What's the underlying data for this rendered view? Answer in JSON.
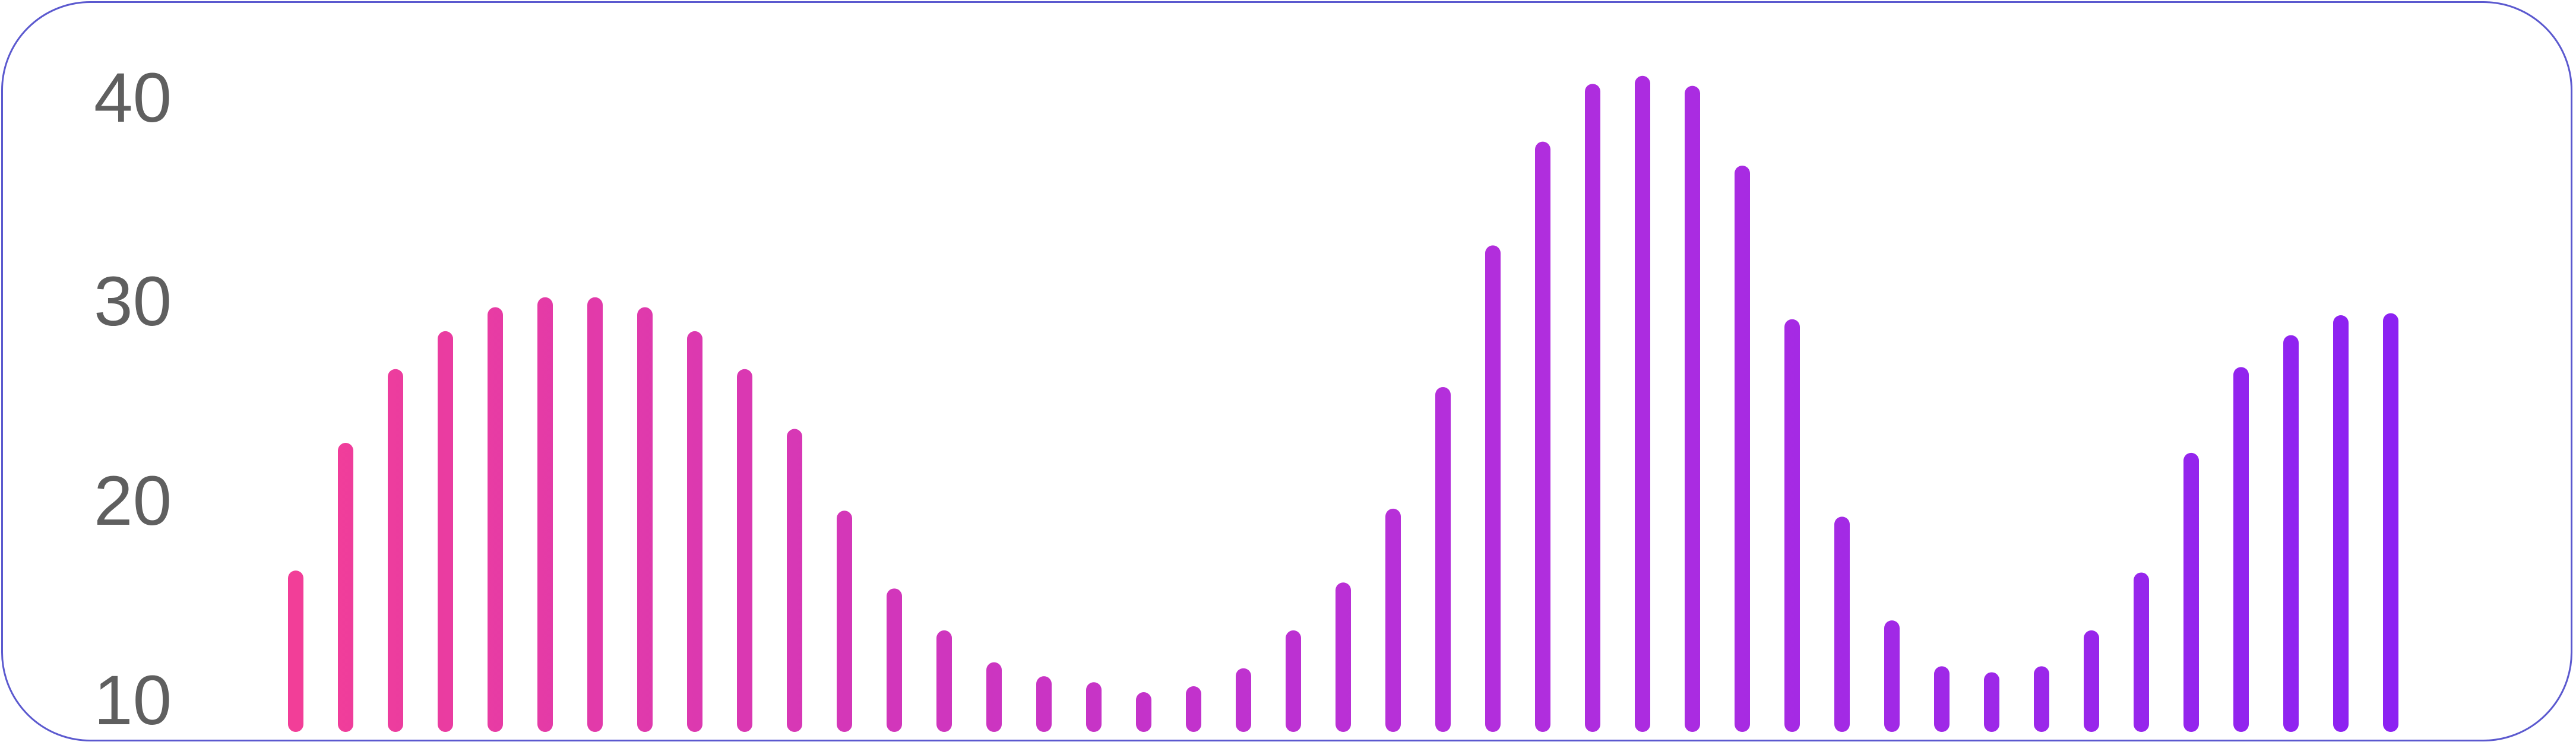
{
  "chart_data": {
    "type": "bar",
    "y_ticks": [
      "10",
      "20",
      "30",
      "40"
    ],
    "ylim": [
      10,
      43
    ],
    "grid": false,
    "legend": "none",
    "values": [
      17.2,
      23.6,
      27.3,
      29.2,
      30.4,
      30.9,
      30.9,
      30.4,
      29.2,
      27.3,
      24.3,
      20.2,
      16.3,
      14.2,
      12.6,
      11.9,
      11.6,
      11.1,
      11.4,
      12.3,
      14.2,
      16.6,
      20.3,
      26.4,
      33.5,
      38.7,
      41.6,
      42.0,
      41.5,
      37.5,
      29.8,
      19.9,
      14.7,
      12.4,
      12.1,
      12.4,
      14.2,
      17.1,
      23.1,
      27.4,
      29.0,
      30.0,
      30.1
    ],
    "colors": {
      "start": "#f23e98",
      "mid": "#b42fdb",
      "end": "#8c22f2",
      "border": "#5b59cf",
      "tick_text": "#5f5f5f"
    }
  }
}
